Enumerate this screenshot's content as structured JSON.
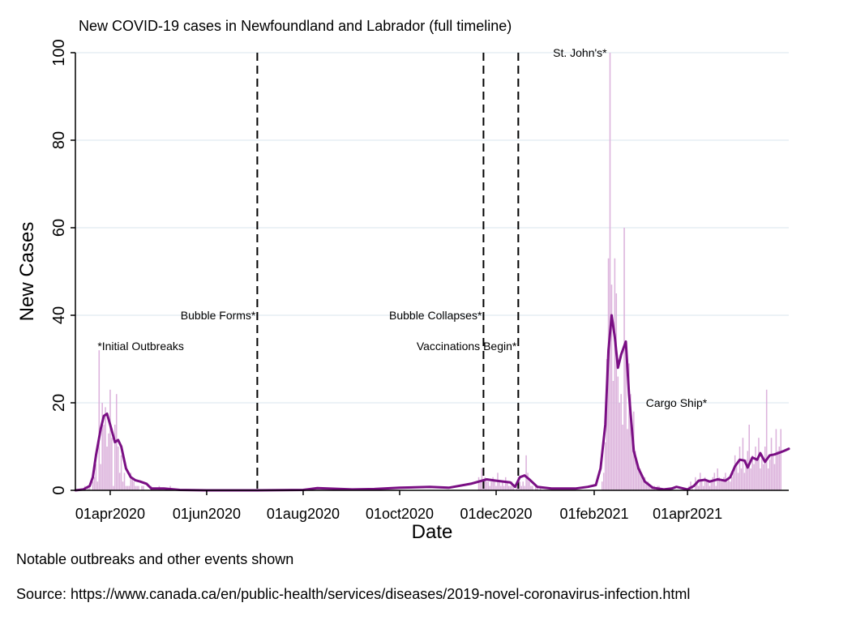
{
  "chart_data": {
    "type": "bar",
    "title": "New COVID-19 cases in Newfoundland and Labrador (full timeline)",
    "xlabel": "Date",
    "ylabel": "New Cases",
    "ylim": [
      0,
      100
    ],
    "xlim": [
      "2020-03-10",
      "2021-06-04"
    ],
    "yticks": [
      0,
      20,
      40,
      60,
      80,
      100
    ],
    "xticks": [
      {
        "date": "2020-04-01",
        "label": "01apr2020"
      },
      {
        "date": "2020-06-01",
        "label": "01jun2020"
      },
      {
        "date": "2020-08-01",
        "label": "01aug2020"
      },
      {
        "date": "2020-10-01",
        "label": "01oct2020"
      },
      {
        "date": "2020-12-01",
        "label": "01dec2020"
      },
      {
        "date": "2021-02-01",
        "label": "01feb2021"
      },
      {
        "date": "2021-04-01",
        "label": "01apr2021"
      }
    ],
    "grid": true,
    "colors": {
      "bars": "#dcb3dc",
      "line": "#7a0f84",
      "events": "#000000",
      "grid": "#e6eef4"
    },
    "events": [
      {
        "date": "2020-07-03",
        "label": "Bubble Forms*",
        "y": 40
      },
      {
        "date": "2020-11-23",
        "label": "Bubble Collapses*",
        "y": 40
      },
      {
        "date": "2020-12-15",
        "label": "Vaccinations Begin*",
        "y": 33
      }
    ],
    "annotations": [
      {
        "date": "2020-03-24",
        "y": 33,
        "label": "*Initial Outbreaks",
        "anchor": "start"
      },
      {
        "date": "2021-02-09",
        "y": 100,
        "label": "St. John's*",
        "anchor": "end"
      },
      {
        "date": "2021-03-25",
        "y": 20,
        "label": "Cargo Ship*",
        "anchor": "middle"
      }
    ],
    "series": [
      {
        "name": "New Cases",
        "kind": "bar",
        "segments": [
          {
            "start": "2020-03-14",
            "values": [
              0,
              0,
              1,
              0,
              1,
              1,
              0,
              2,
              3,
              6,
              2,
              32,
              6,
              20,
              15,
              19,
              10,
              13,
              23,
              12,
              1,
              15,
              22,
              10,
              4,
              8,
              2,
              4,
              1,
              1,
              1,
              4,
              3,
              2,
              1,
              1,
              1,
              0,
              1,
              1,
              0,
              0,
              0,
              0,
              1,
              0,
              0,
              0,
              0,
              1,
              0,
              0,
              0,
              0,
              0,
              0,
              1,
              0,
              0,
              0,
              0,
              0,
              0,
              0
            ]
          },
          {
            "start": "2020-11-20",
            "values": [
              3,
              2,
              5,
              2,
              3,
              2,
              2,
              1,
              2,
              3,
              2,
              1,
              4,
              2,
              1,
              2,
              1,
              3,
              2,
              1,
              1,
              2,
              1,
              0,
              1,
              3,
              2,
              1,
              2,
              1,
              8,
              4,
              2,
              1,
              1,
              0,
              1,
              1,
              0,
              1
            ]
          },
          {
            "start": "2021-02-06",
            "values": [
              2,
              4,
              11,
              30,
              53,
              100,
              47,
              25,
              53,
              45,
              26,
              20,
              22,
              15,
              60,
              33,
              14,
              29,
              22,
              15,
              18,
              9,
              7,
              5,
              5,
              4,
              3,
              3,
              2,
              2,
              1,
              1,
              1,
              1,
              0,
              1,
              1,
              0,
              0,
              0
            ]
          },
          {
            "start": "2021-04-01",
            "values": [
              0,
              1,
              2,
              1,
              0,
              3,
              2,
              1,
              4,
              2,
              1,
              3,
              2,
              2,
              1,
              2,
              3,
              4,
              1,
              5,
              3,
              2,
              2,
              3,
              4,
              2,
              3,
              2,
              3,
              4,
              8,
              6,
              4,
              10,
              5,
              12,
              4,
              7,
              9,
              15,
              5,
              8,
              6,
              10,
              7,
              12,
              5,
              8,
              6,
              10,
              23,
              5,
              7,
              12,
              8,
              6,
              14,
              9,
              10,
              14
            ]
          }
        ]
      },
      {
        "name": "7-day average",
        "kind": "line",
        "points": [
          [
            "2020-03-10",
            0
          ],
          [
            "2020-03-15",
            0.2
          ],
          [
            "2020-03-19",
            1
          ],
          [
            "2020-03-21",
            3
          ],
          [
            "2020-03-23",
            8
          ],
          [
            "2020-03-26",
            14
          ],
          [
            "2020-03-28",
            17
          ],
          [
            "2020-03-30",
            17.5
          ],
          [
            "2020-04-01",
            15
          ],
          [
            "2020-04-04",
            11
          ],
          [
            "2020-04-06",
            11.5
          ],
          [
            "2020-04-08",
            10
          ],
          [
            "2020-04-11",
            5
          ],
          [
            "2020-04-14",
            3
          ],
          [
            "2020-04-17",
            2.3
          ],
          [
            "2020-04-20",
            2
          ],
          [
            "2020-04-24",
            1.5
          ],
          [
            "2020-04-27",
            0.4
          ],
          [
            "2020-05-05",
            0.4
          ],
          [
            "2020-05-15",
            0.1
          ],
          [
            "2020-06-01",
            0
          ],
          [
            "2020-07-03",
            0
          ],
          [
            "2020-08-01",
            0.1
          ],
          [
            "2020-08-10",
            0.5
          ],
          [
            "2020-09-01",
            0.2
          ],
          [
            "2020-09-15",
            0.3
          ],
          [
            "2020-10-01",
            0.6
          ],
          [
            "2020-10-20",
            0.8
          ],
          [
            "2020-11-01",
            0.6
          ],
          [
            "2020-11-15",
            1.5
          ],
          [
            "2020-11-25",
            2.5
          ],
          [
            "2020-12-01",
            2.2
          ],
          [
            "2020-12-10",
            1.8
          ],
          [
            "2020-12-13",
            0.8
          ],
          [
            "2020-12-16",
            3
          ],
          [
            "2020-12-19",
            3.4
          ],
          [
            "2020-12-22",
            2.5
          ],
          [
            "2020-12-27",
            0.8
          ],
          [
            "2021-01-05",
            0.4
          ],
          [
            "2021-01-20",
            0.4
          ],
          [
            "2021-01-28",
            0.8
          ],
          [
            "2021-02-02",
            1.2
          ],
          [
            "2021-02-05",
            5
          ],
          [
            "2021-02-08",
            15
          ],
          [
            "2021-02-10",
            32
          ],
          [
            "2021-02-12",
            40
          ],
          [
            "2021-02-14",
            35
          ],
          [
            "2021-02-16",
            28
          ],
          [
            "2021-02-18",
            31
          ],
          [
            "2021-02-21",
            34
          ],
          [
            "2021-02-23",
            22
          ],
          [
            "2021-02-26",
            9
          ],
          [
            "2021-03-01",
            5
          ],
          [
            "2021-03-05",
            2
          ],
          [
            "2021-03-10",
            0.6
          ],
          [
            "2021-03-17",
            0.2
          ],
          [
            "2021-03-22",
            0.4
          ],
          [
            "2021-03-25",
            0.8
          ],
          [
            "2021-04-01",
            0.2
          ],
          [
            "2021-04-05",
            1
          ],
          [
            "2021-04-08",
            2.2
          ],
          [
            "2021-04-12",
            2.4
          ],
          [
            "2021-04-15",
            2
          ],
          [
            "2021-04-20",
            2.5
          ],
          [
            "2021-04-25",
            2.2
          ],
          [
            "2021-04-28",
            3
          ],
          [
            "2021-05-01",
            5.5
          ],
          [
            "2021-05-04",
            7
          ],
          [
            "2021-05-07",
            6.8
          ],
          [
            "2021-05-09",
            5.2
          ],
          [
            "2021-05-12",
            7.5
          ],
          [
            "2021-05-15",
            7
          ],
          [
            "2021-05-17",
            8.5
          ],
          [
            "2021-05-20",
            6.5
          ],
          [
            "2021-05-23",
            8
          ],
          [
            "2021-05-26",
            8.2
          ],
          [
            "2021-05-29",
            8.6
          ],
          [
            "2021-06-01",
            9
          ],
          [
            "2021-06-04",
            9.5
          ]
        ]
      }
    ]
  },
  "notes": {
    "line1": "Notable outbreaks and other events shown",
    "line2": "Source: https://www.canada.ca/en/public-health/services/diseases/2019-novel-coronavirus-infection.html"
  }
}
